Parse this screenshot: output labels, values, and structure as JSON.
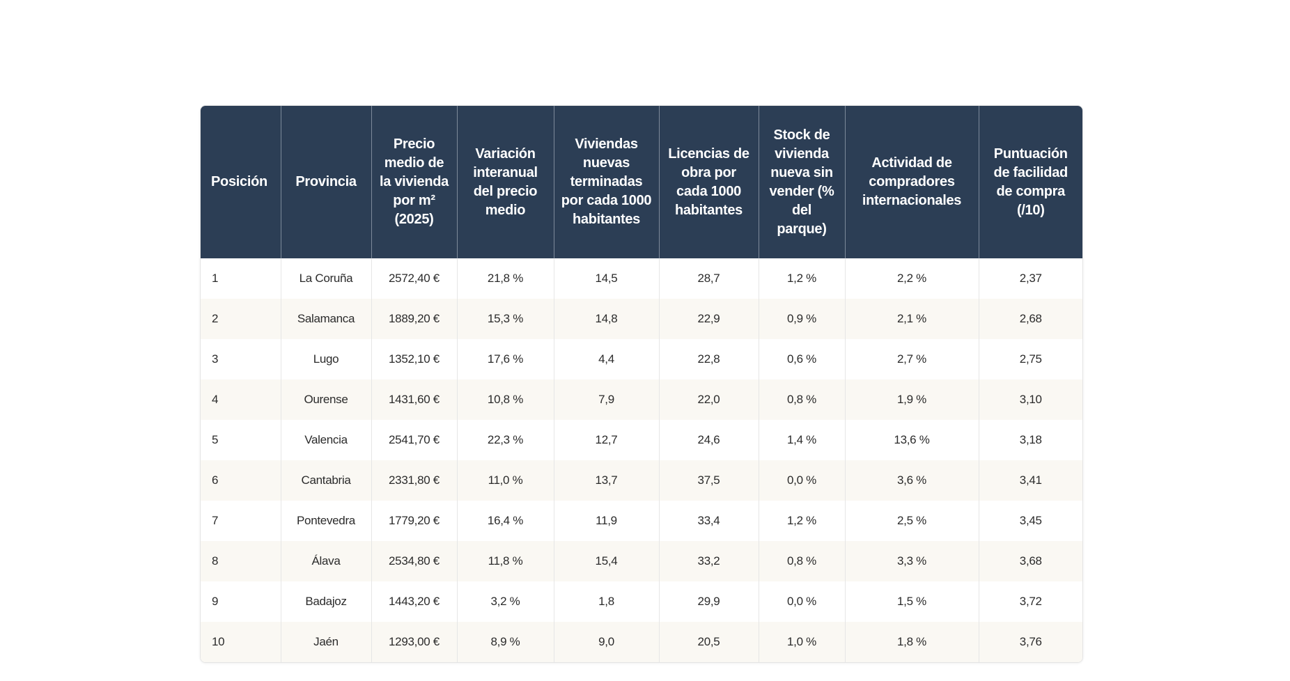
{
  "table": {
    "headers": [
      "Posición",
      "Provincia",
      "Precio medio de la vivienda por m² (2025)",
      "Variación interanual del precio medio",
      "Viviendas nuevas terminadas por cada 1000 habitantes",
      "Licencias de obra por cada 1000 habitantes",
      "Stock de vivienda nueva sin vender (% del parque)",
      "Actividad de compradores internacionales",
      "Puntuación de facilidad de compra (/10)"
    ],
    "rows": [
      [
        "1",
        "La Coruña",
        "2572,40 €",
        "21,8 %",
        "14,5",
        "28,7",
        "1,2 %",
        "2,2 %",
        "2,37"
      ],
      [
        "2",
        "Salamanca",
        "1889,20 €",
        "15,3 %",
        "14,8",
        "22,9",
        "0,9 %",
        "2,1 %",
        "2,68"
      ],
      [
        "3",
        "Lugo",
        "1352,10 €",
        "17,6 %",
        "4,4",
        "22,8",
        "0,6 %",
        "2,7 %",
        "2,75"
      ],
      [
        "4",
        "Ourense",
        "1431,60 €",
        "10,8 %",
        "7,9",
        "22,0",
        "0,8 %",
        "1,9 %",
        "3,10"
      ],
      [
        "5",
        "Valencia",
        "2541,70 €",
        "22,3 %",
        "12,7",
        "24,6",
        "1,4 %",
        "13,6 %",
        "3,18"
      ],
      [
        "6",
        "Cantabria",
        "2331,80 €",
        "11,0 %",
        "13,7",
        "37,5",
        "0,0 %",
        "3,6 %",
        "3,41"
      ],
      [
        "7",
        "Pontevedra",
        "1779,20 €",
        "16,4 %",
        "11,9",
        "33,4",
        "1,2 %",
        "2,5 %",
        "3,45"
      ],
      [
        "8",
        "Álava",
        "2534,80 €",
        "11,8 %",
        "15,4",
        "33,2",
        "0,8 %",
        "3,3 %",
        "3,68"
      ],
      [
        "9",
        "Badajoz",
        "1443,20 €",
        "3,2 %",
        "1,8",
        "29,9",
        "0,0 %",
        "1,5 %",
        "3,72"
      ],
      [
        "10",
        "Jaén",
        "1293,00 €",
        "8,9 %",
        "9,0",
        "20,5",
        "1,0 %",
        "1,8 %",
        "3,76"
      ]
    ]
  },
  "colors": {
    "header_bg": "#2c3e55",
    "alt_row_bg": "#faf8f3"
  }
}
